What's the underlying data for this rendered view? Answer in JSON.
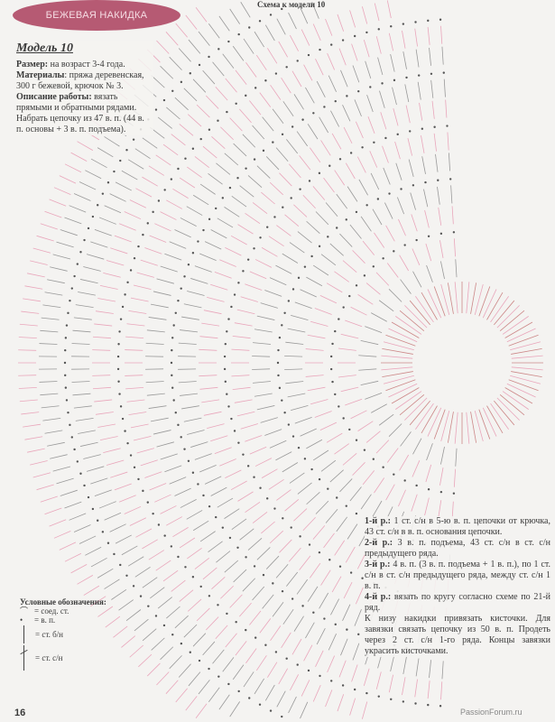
{
  "header": {
    "badge": "БЕЖЕВАЯ НАКИДКА",
    "schema_title": "Схема к модели 10"
  },
  "intro": {
    "model": "Модель 10",
    "size_label": "Размер:",
    "size_text": " на возраст 3-4 года.",
    "materials_label": "Материалы",
    "materials_text": ": пряжа деревенская, 300 г бежевой, крючок № 3.",
    "desc_label": "Описание работы:",
    "desc_text": " вязать прямыми и обратными рядами. Набрать цепочку из 47 в. п. (44 в. п. основы + 3 в. п. подъема)."
  },
  "rows": [
    {
      "label": "1-й р.:",
      "text": " 1 ст. с/н в 5-ю в. п. цепочки от крючка, 43 ст. с/н в в. п. основания цепочки."
    },
    {
      "label": "2-й р.:",
      "text": " 3 в. п. подъема, 43 ст. с/н в ст. с/н предыдущего ряда."
    },
    {
      "label": "3-й р.:",
      "text": " 4 в. п. (3 в. п. подъема + 1 в. п.), по 1 ст. с/н в ст. с/н предыдущего ряда, между ст. с/н 1 в. п."
    },
    {
      "label": "4-й р.:",
      "text": " вязать по кругу согласно схеме по 21-й ряд."
    }
  ],
  "finish_text": "К низу накидки привязать кисточки. Для завязки связать цепочку из 50 в. п. Продеть через 2 ст. с/н 1-го ряда. Концы завязки украсить кисточками.",
  "legend": {
    "title": "Условные обозначения:",
    "items": [
      {
        "icon": "slip-stitch-icon",
        "text": "= соед. ст."
      },
      {
        "icon": "chain-stitch-icon",
        "text": "= в. п."
      },
      {
        "icon": "single-crochet-icon",
        "text": "= ст. б/н"
      },
      {
        "icon": "double-crochet-icon",
        "text": "= ст. с/н"
      }
    ]
  },
  "page_number": "16",
  "watermark": "PassionForum.ru",
  "colors": {
    "pink": "#e9a6bb",
    "dark": "#555555",
    "badge": "#b65a73"
  }
}
